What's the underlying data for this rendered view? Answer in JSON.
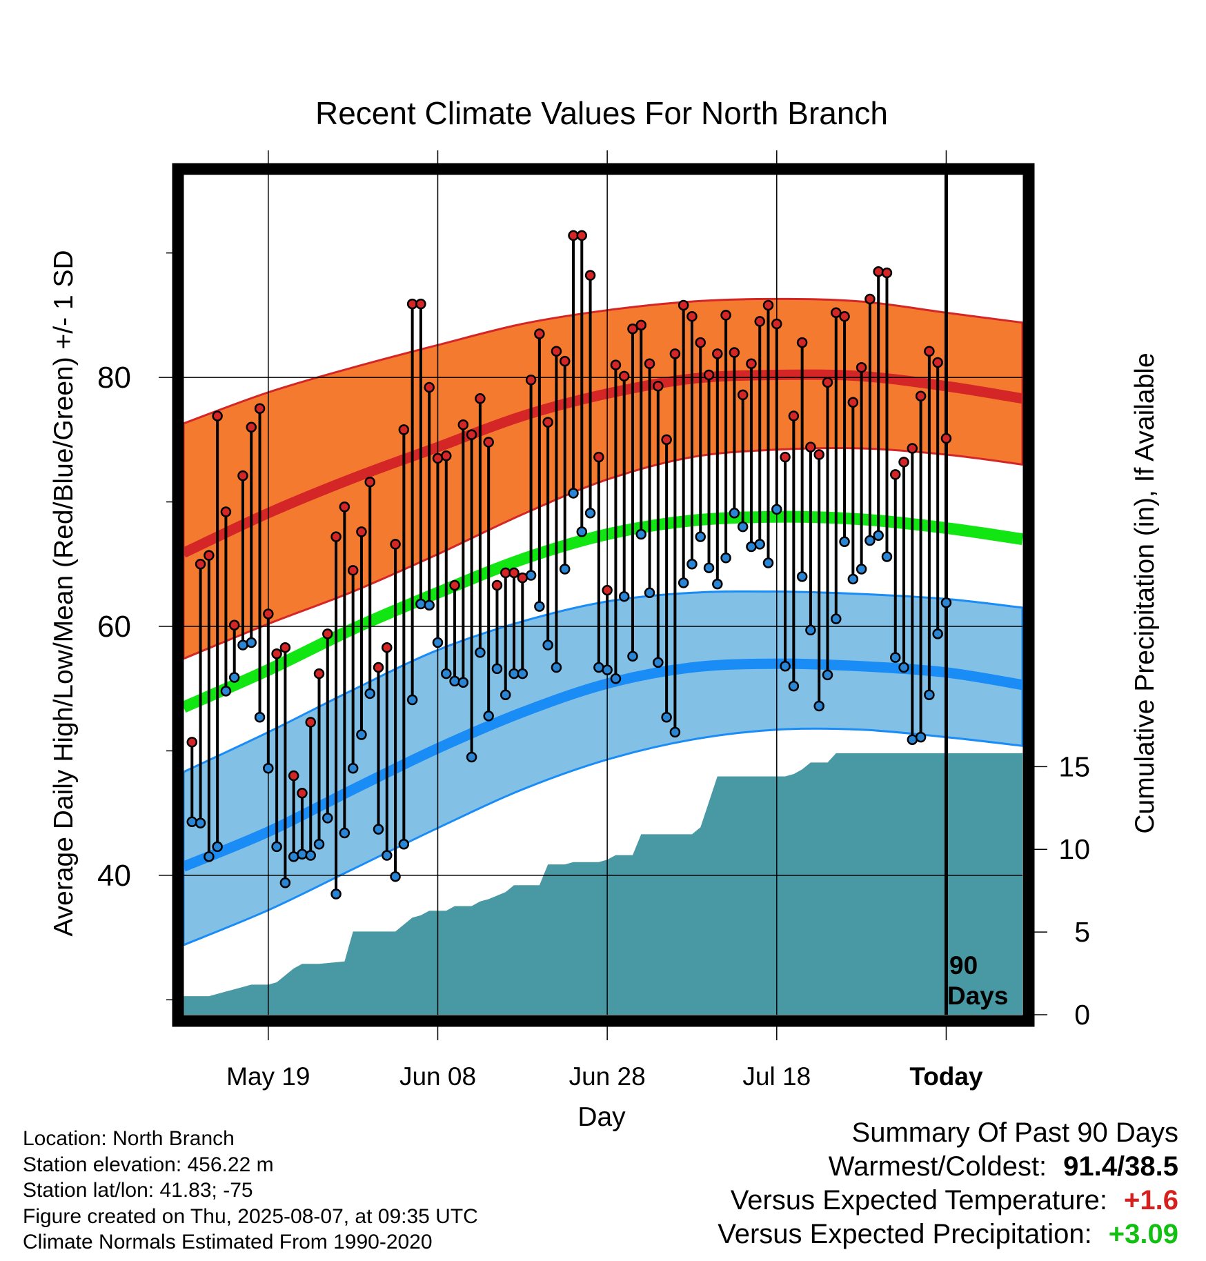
{
  "title": "Recent Climate Values For North Branch",
  "y_label_left": "Average Daily High/Low/Mean (Red/Blue/Green) +/- 1 SD",
  "y_label_right": "Cumulative Precipitation (in), If Available",
  "x_label": "Day",
  "today_marker": {
    "line1": "90",
    "line2": "Days"
  },
  "info": [
    "Location: North Branch",
    "Station elevation: 456.22 m",
    "Station lat/lon: 41.83; -75",
    "Figure created on Thu, 2025-08-07, at 09:35 UTC",
    "Climate Normals Estimated From 1990-2020"
  ],
  "summary": {
    "heading": "Summary Of Past 90 Days",
    "warmest_coldest_label": "Warmest/Coldest:",
    "warmest_coldest_value": "91.4/38.5",
    "temp_label": "Versus Expected Temperature:",
    "temp_value": "+1.6",
    "precip_label": "Versus Expected Precipitation:",
    "precip_value": "+3.09"
  },
  "colors": {
    "high_band": "#f47a30",
    "high_mean": "#d42626",
    "low_band": "#82c0e6",
    "low_mean": "#1a8cf5",
    "mean_line": "#12e612",
    "precip": "#4899a3",
    "high_point": "#d42626",
    "low_point": "#2a85d5"
  },
  "chart_data": {
    "type": "line",
    "x_ticks": [
      {
        "day": 9,
        "label": "May 19"
      },
      {
        "day": 29,
        "label": "Jun 08"
      },
      {
        "day": 49,
        "label": "Jun 28"
      },
      {
        "day": 69,
        "label": "Jul 18"
      },
      {
        "day": 89,
        "label": "Today"
      }
    ],
    "x_range": [
      -1,
      98
    ],
    "y_left_ticks": [
      40,
      60,
      80
    ],
    "y_left_minor_ticks": [
      30,
      50,
      70,
      90
    ],
    "y_left_range": [
      28.8,
      96.3
    ],
    "y_right_ticks": [
      0,
      5,
      10,
      15
    ],
    "y_right_range": [
      0,
      50.8
    ],
    "normals": {
      "day": [
        -1,
        9,
        19,
        29,
        39,
        49,
        59,
        69,
        79,
        89,
        98
      ],
      "high_mean": [
        65.9,
        69.1,
        71.9,
        74.4,
        76.9,
        78.7,
        79.9,
        80.2,
        80.1,
        79.3,
        78.3
      ],
      "high_upper": [
        76.3,
        78.8,
        80.8,
        82.6,
        84.3,
        85.4,
        86.1,
        86.3,
        86.1,
        85.2,
        84.4
      ],
      "high_lower": [
        57.4,
        60.2,
        62.8,
        65.8,
        69.0,
        71.8,
        73.6,
        74.2,
        74.3,
        73.8,
        73.0
      ],
      "mean": [
        53.5,
        56.5,
        59.8,
        62.7,
        65.4,
        67.4,
        68.5,
        68.8,
        68.6,
        67.9,
        67.0
      ],
      "low_mean": [
        40.7,
        43.5,
        46.9,
        50.2,
        53.1,
        55.4,
        56.7,
        57.0,
        56.8,
        56.3,
        55.3
      ],
      "low_upper": [
        48.3,
        51.5,
        54.9,
        58.1,
        60.4,
        62.0,
        62.7,
        62.8,
        62.6,
        62.2,
        61.5
      ],
      "low_lower": [
        34.4,
        37.2,
        40.5,
        43.8,
        46.9,
        49.3,
        50.9,
        51.7,
        51.7,
        51.1,
        50.4
      ]
    },
    "daily": {
      "high": [
        50.7,
        65.0,
        65.7,
        76.9,
        69.2,
        60.1,
        72.1,
        76.0,
        77.5,
        61.0,
        57.8,
        58.3,
        48.0,
        46.6,
        52.3,
        56.2,
        59.4,
        67.2,
        69.6,
        64.5,
        67.6,
        71.6,
        56.7,
        58.3,
        66.6,
        75.8,
        85.9,
        85.9,
        79.2,
        73.5,
        73.7,
        63.3,
        76.2,
        75.4,
        78.3,
        74.8,
        63.3,
        64.3,
        64.3,
        63.9,
        79.8,
        83.5,
        76.4,
        82.1,
        81.3,
        91.4,
        91.4,
        88.2,
        73.6,
        62.9,
        81.0,
        80.1,
        83.9,
        84.2,
        81.1,
        79.3,
        75.0,
        81.9,
        85.8,
        84.9,
        82.8,
        80.2,
        81.9,
        85.0,
        82.0,
        78.6,
        81.1,
        84.5,
        85.8,
        84.3,
        73.6,
        76.9,
        82.8,
        74.4,
        73.8,
        79.6,
        85.2,
        84.9,
        78.0,
        80.8,
        86.3,
        88.5,
        88.4,
        72.2,
        73.2,
        74.3,
        78.5,
        82.1,
        81.2,
        75.1
      ],
      "low": [
        44.3,
        44.2,
        41.5,
        42.3,
        54.8,
        55.9,
        58.5,
        58.7,
        52.7,
        48.6,
        42.3,
        39.4,
        41.5,
        41.7,
        41.6,
        42.5,
        44.6,
        38.5,
        43.4,
        48.6,
        51.3,
        54.6,
        43.7,
        41.6,
        39.9,
        42.5,
        54.1,
        61.8,
        61.7,
        58.7,
        56.2,
        55.6,
        55.5,
        49.5,
        57.9,
        52.8,
        56.6,
        54.5,
        56.2,
        56.2,
        64.1,
        61.6,
        58.5,
        56.7,
        64.6,
        70.7,
        67.6,
        69.1,
        56.7,
        56.5,
        55.8,
        62.4,
        57.6,
        67.4,
        62.7,
        57.1,
        52.7,
        51.5,
        63.5,
        65.0,
        67.2,
        64.7,
        63.4,
        65.5,
        69.1,
        68.0,
        66.4,
        66.6,
        65.1,
        69.4,
        56.8,
        55.2,
        64.0,
        59.7,
        53.6,
        56.1,
        60.6,
        66.8,
        63.8,
        64.6,
        66.9,
        67.3,
        65.6,
        57.5,
        56.7,
        50.9,
        51.1,
        54.5,
        59.4,
        61.9
      ]
    },
    "precip_cumulative": [
      [
        -1,
        1.12
      ],
      [
        2,
        1.12
      ],
      [
        3,
        1.26
      ],
      [
        4,
        1.4
      ],
      [
        5,
        1.54
      ],
      [
        6,
        1.68
      ],
      [
        7,
        1.82
      ],
      [
        9,
        1.82
      ],
      [
        10,
        1.96
      ],
      [
        11,
        2.38
      ],
      [
        12,
        2.8
      ],
      [
        13,
        3.08
      ],
      [
        15,
        3.08
      ],
      [
        18,
        3.22
      ],
      [
        19,
        5.03
      ],
      [
        24,
        5.03
      ],
      [
        25,
        5.45
      ],
      [
        26,
        5.87
      ],
      [
        27,
        6.01
      ],
      [
        28,
        6.29
      ],
      [
        30,
        6.29
      ],
      [
        31,
        6.57
      ],
      [
        33,
        6.57
      ],
      [
        34,
        6.85
      ],
      [
        35,
        6.99
      ],
      [
        37,
        7.41
      ],
      [
        38,
        7.83
      ],
      [
        41,
        7.83
      ],
      [
        42,
        9.09
      ],
      [
        44,
        9.09
      ],
      [
        45,
        9.23
      ],
      [
        48,
        9.23
      ],
      [
        49,
        9.37
      ],
      [
        50,
        9.65
      ],
      [
        52,
        9.65
      ],
      [
        53,
        10.91
      ],
      [
        59,
        10.91
      ],
      [
        60,
        11.33
      ],
      [
        62,
        14.41
      ],
      [
        70,
        14.41
      ],
      [
        71,
        14.55
      ],
      [
        72,
        14.83
      ],
      [
        73,
        15.25
      ],
      [
        75,
        15.25
      ],
      [
        76,
        15.81
      ],
      [
        77,
        15.81
      ],
      [
        98,
        15.81
      ]
    ]
  }
}
